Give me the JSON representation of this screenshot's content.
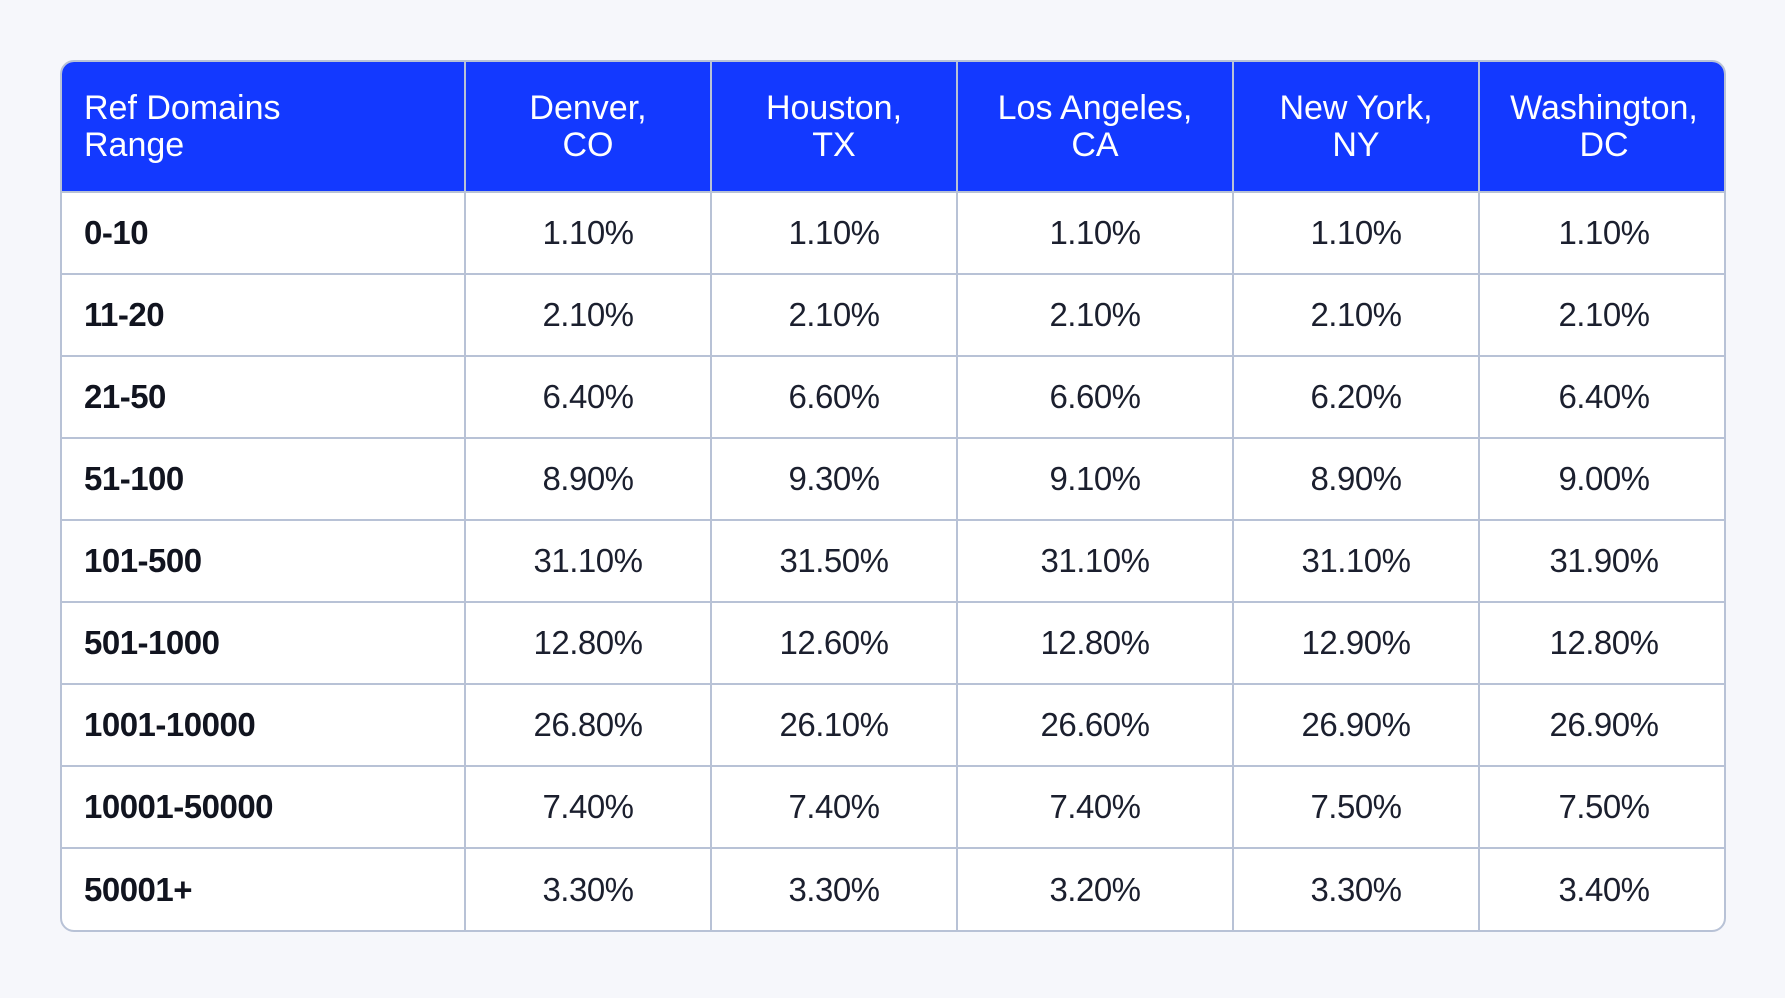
{
  "chart_data": {
    "type": "table",
    "columns": [
      "Ref Domains Range",
      "Denver, CO",
      "Houston, TX",
      "Los Angeles, CA",
      "New York, NY",
      "Washington, DC"
    ],
    "header_lines": [
      [
        "Ref Domains",
        "Range"
      ],
      [
        "Denver,",
        "CO"
      ],
      [
        "Houston,",
        "TX"
      ],
      [
        "Los Angeles,",
        "CA"
      ],
      [
        "New York,",
        "NY"
      ],
      [
        "Washington,",
        "DC"
      ]
    ],
    "rows": [
      [
        "0-10",
        "1.10%",
        "1.10%",
        "1.10%",
        "1.10%",
        "1.10%"
      ],
      [
        "11-20",
        "2.10%",
        "2.10%",
        "2.10%",
        "2.10%",
        "2.10%"
      ],
      [
        "21-50",
        "6.40%",
        "6.60%",
        "6.60%",
        "6.20%",
        "6.40%"
      ],
      [
        "51-100",
        "8.90%",
        "9.30%",
        "9.10%",
        "8.90%",
        "9.00%"
      ],
      [
        "101-500",
        "31.10%",
        "31.50%",
        "31.10%",
        "31.10%",
        "31.90%"
      ],
      [
        "501-1000",
        "12.80%",
        "12.60%",
        "12.80%",
        "12.90%",
        "12.80%"
      ],
      [
        "1001-10000",
        "26.80%",
        "26.10%",
        "26.60%",
        "26.90%",
        "26.90%"
      ],
      [
        "10001-50000",
        "7.40%",
        "7.40%",
        "7.40%",
        "7.50%",
        "7.50%"
      ],
      [
        "50001+",
        "3.30%",
        "3.30%",
        "3.20%",
        "3.30%",
        "3.40%"
      ]
    ],
    "colors": {
      "header_bg": "#1339ff",
      "header_text": "#ffffff",
      "grid": "#b8c2d6",
      "page_bg": "#f6f7fb"
    }
  }
}
